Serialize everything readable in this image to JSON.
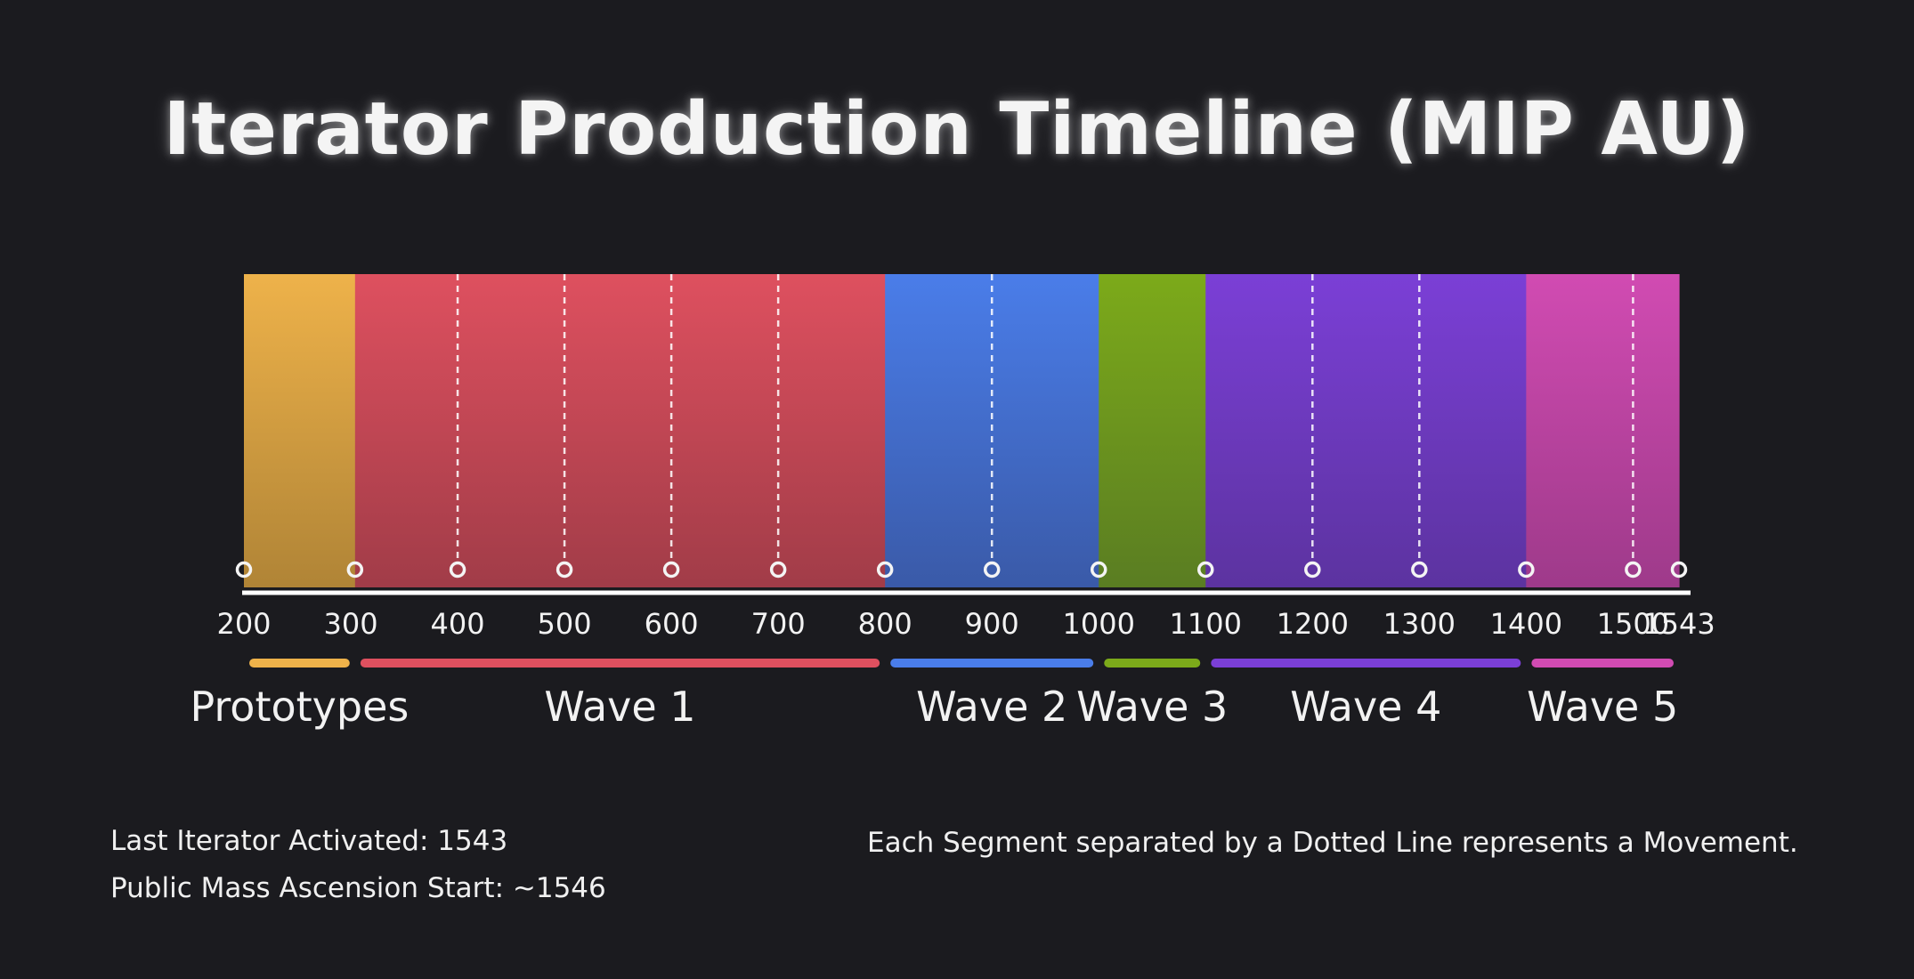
{
  "title": "Iterator Production Timeline (MIP AU)",
  "chart_data": {
    "type": "timeline",
    "x_start": 200,
    "x_end": 1543,
    "ticks": [
      {
        "value": 200,
        "label": "200"
      },
      {
        "value": 300,
        "label": "300"
      },
      {
        "value": 400,
        "label": "400"
      },
      {
        "value": 500,
        "label": "500"
      },
      {
        "value": 600,
        "label": "600"
      },
      {
        "value": 700,
        "label": "700"
      },
      {
        "value": 800,
        "label": "800"
      },
      {
        "value": 900,
        "label": "900"
      },
      {
        "value": 1000,
        "label": "1000"
      },
      {
        "value": 1100,
        "label": "1100"
      },
      {
        "value": 1200,
        "label": "1200"
      },
      {
        "value": 1300,
        "label": "1300"
      },
      {
        "value": 1400,
        "label": "1400"
      },
      {
        "value": 1500,
        "label": "1500"
      },
      {
        "value": 1543,
        "label": "1543"
      }
    ],
    "segments": [
      {
        "name": "Prototypes",
        "start": 200,
        "end": 304,
        "color_top": "#eeb24a",
        "color_bottom": "#b08436",
        "movement_dividers": []
      },
      {
        "name": "Wave 1",
        "start": 304,
        "end": 800,
        "color_top": "#de505f",
        "color_bottom": "#a13c48",
        "movement_dividers": [
          400,
          500,
          600,
          700
        ]
      },
      {
        "name": "Wave 2",
        "start": 800,
        "end": 1000,
        "color_top": "#4a7de9",
        "color_bottom": "#3a5aa8",
        "movement_dividers": [
          900
        ]
      },
      {
        "name": "Wave 3",
        "start": 1000,
        "end": 1100,
        "color_top": "#7caa1a",
        "color_bottom": "#5a7d22",
        "movement_dividers": []
      },
      {
        "name": "Wave 4",
        "start": 1100,
        "end": 1400,
        "color_top": "#7b3fd6",
        "color_bottom": "#5c33a0",
        "movement_dividers": [
          1200,
          1300
        ]
      },
      {
        "name": "Wave 5",
        "start": 1400,
        "end": 1543,
        "color_top": "#d14bb2",
        "color_bottom": "#9e3a8a",
        "movement_dividers": [
          1500
        ]
      }
    ]
  },
  "footer": {
    "last_activated": "Last Iterator Activated: 1543",
    "public_ascension": "Public Mass Ascension Start: ~1546",
    "note": "Each Segment separated by a Dotted Line represents a Movement."
  }
}
